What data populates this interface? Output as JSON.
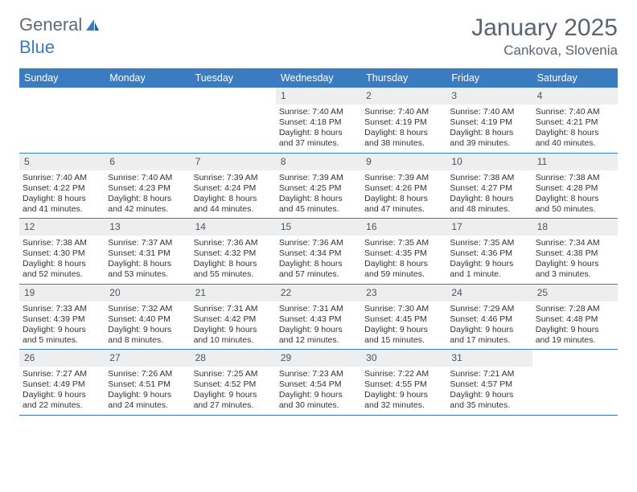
{
  "logo": {
    "text_general": "General",
    "text_blue": "Blue"
  },
  "title": "January 2025",
  "location": "Cankova, Slovenia",
  "colors": {
    "header_bg": "#3b7bbf",
    "header_text": "#ffffff",
    "daynum_bg": "#eceef0",
    "text": "#333333",
    "title_color": "#5a6570",
    "logo_gray": "#606a74",
    "logo_blue": "#3b7bbf",
    "border": "#3b7bbf",
    "page_bg": "#ffffff"
  },
  "day_names": [
    "Sunday",
    "Monday",
    "Tuesday",
    "Wednesday",
    "Thursday",
    "Friday",
    "Saturday"
  ],
  "weeks": [
    [
      {
        "empty": true
      },
      {
        "empty": true
      },
      {
        "empty": true
      },
      {
        "date": "1",
        "sunrise": "Sunrise: 7:40 AM",
        "sunset": "Sunset: 4:18 PM",
        "day1": "Daylight: 8 hours",
        "day2": "and 37 minutes."
      },
      {
        "date": "2",
        "sunrise": "Sunrise: 7:40 AM",
        "sunset": "Sunset: 4:19 PM",
        "day1": "Daylight: 8 hours",
        "day2": "and 38 minutes."
      },
      {
        "date": "3",
        "sunrise": "Sunrise: 7:40 AM",
        "sunset": "Sunset: 4:19 PM",
        "day1": "Daylight: 8 hours",
        "day2": "and 39 minutes."
      },
      {
        "date": "4",
        "sunrise": "Sunrise: 7:40 AM",
        "sunset": "Sunset: 4:21 PM",
        "day1": "Daylight: 8 hours",
        "day2": "and 40 minutes."
      }
    ],
    [
      {
        "date": "5",
        "sunrise": "Sunrise: 7:40 AM",
        "sunset": "Sunset: 4:22 PM",
        "day1": "Daylight: 8 hours",
        "day2": "and 41 minutes."
      },
      {
        "date": "6",
        "sunrise": "Sunrise: 7:40 AM",
        "sunset": "Sunset: 4:23 PM",
        "day1": "Daylight: 8 hours",
        "day2": "and 42 minutes."
      },
      {
        "date": "7",
        "sunrise": "Sunrise: 7:39 AM",
        "sunset": "Sunset: 4:24 PM",
        "day1": "Daylight: 8 hours",
        "day2": "and 44 minutes."
      },
      {
        "date": "8",
        "sunrise": "Sunrise: 7:39 AM",
        "sunset": "Sunset: 4:25 PM",
        "day1": "Daylight: 8 hours",
        "day2": "and 45 minutes."
      },
      {
        "date": "9",
        "sunrise": "Sunrise: 7:39 AM",
        "sunset": "Sunset: 4:26 PM",
        "day1": "Daylight: 8 hours",
        "day2": "and 47 minutes."
      },
      {
        "date": "10",
        "sunrise": "Sunrise: 7:38 AM",
        "sunset": "Sunset: 4:27 PM",
        "day1": "Daylight: 8 hours",
        "day2": "and 48 minutes."
      },
      {
        "date": "11",
        "sunrise": "Sunrise: 7:38 AM",
        "sunset": "Sunset: 4:28 PM",
        "day1": "Daylight: 8 hours",
        "day2": "and 50 minutes."
      }
    ],
    [
      {
        "date": "12",
        "sunrise": "Sunrise: 7:38 AM",
        "sunset": "Sunset: 4:30 PM",
        "day1": "Daylight: 8 hours",
        "day2": "and 52 minutes."
      },
      {
        "date": "13",
        "sunrise": "Sunrise: 7:37 AM",
        "sunset": "Sunset: 4:31 PM",
        "day1": "Daylight: 8 hours",
        "day2": "and 53 minutes."
      },
      {
        "date": "14",
        "sunrise": "Sunrise: 7:36 AM",
        "sunset": "Sunset: 4:32 PM",
        "day1": "Daylight: 8 hours",
        "day2": "and 55 minutes."
      },
      {
        "date": "15",
        "sunrise": "Sunrise: 7:36 AM",
        "sunset": "Sunset: 4:34 PM",
        "day1": "Daylight: 8 hours",
        "day2": "and 57 minutes."
      },
      {
        "date": "16",
        "sunrise": "Sunrise: 7:35 AM",
        "sunset": "Sunset: 4:35 PM",
        "day1": "Daylight: 8 hours",
        "day2": "and 59 minutes."
      },
      {
        "date": "17",
        "sunrise": "Sunrise: 7:35 AM",
        "sunset": "Sunset: 4:36 PM",
        "day1": "Daylight: 9 hours",
        "day2": "and 1 minute."
      },
      {
        "date": "18",
        "sunrise": "Sunrise: 7:34 AM",
        "sunset": "Sunset: 4:38 PM",
        "day1": "Daylight: 9 hours",
        "day2": "and 3 minutes."
      }
    ],
    [
      {
        "date": "19",
        "sunrise": "Sunrise: 7:33 AM",
        "sunset": "Sunset: 4:39 PM",
        "day1": "Daylight: 9 hours",
        "day2": "and 5 minutes."
      },
      {
        "date": "20",
        "sunrise": "Sunrise: 7:32 AM",
        "sunset": "Sunset: 4:40 PM",
        "day1": "Daylight: 9 hours",
        "day2": "and 8 minutes."
      },
      {
        "date": "21",
        "sunrise": "Sunrise: 7:31 AM",
        "sunset": "Sunset: 4:42 PM",
        "day1": "Daylight: 9 hours",
        "day2": "and 10 minutes."
      },
      {
        "date": "22",
        "sunrise": "Sunrise: 7:31 AM",
        "sunset": "Sunset: 4:43 PM",
        "day1": "Daylight: 9 hours",
        "day2": "and 12 minutes."
      },
      {
        "date": "23",
        "sunrise": "Sunrise: 7:30 AM",
        "sunset": "Sunset: 4:45 PM",
        "day1": "Daylight: 9 hours",
        "day2": "and 15 minutes."
      },
      {
        "date": "24",
        "sunrise": "Sunrise: 7:29 AM",
        "sunset": "Sunset: 4:46 PM",
        "day1": "Daylight: 9 hours",
        "day2": "and 17 minutes."
      },
      {
        "date": "25",
        "sunrise": "Sunrise: 7:28 AM",
        "sunset": "Sunset: 4:48 PM",
        "day1": "Daylight: 9 hours",
        "day2": "and 19 minutes."
      }
    ],
    [
      {
        "date": "26",
        "sunrise": "Sunrise: 7:27 AM",
        "sunset": "Sunset: 4:49 PM",
        "day1": "Daylight: 9 hours",
        "day2": "and 22 minutes."
      },
      {
        "date": "27",
        "sunrise": "Sunrise: 7:26 AM",
        "sunset": "Sunset: 4:51 PM",
        "day1": "Daylight: 9 hours",
        "day2": "and 24 minutes."
      },
      {
        "date": "28",
        "sunrise": "Sunrise: 7:25 AM",
        "sunset": "Sunset: 4:52 PM",
        "day1": "Daylight: 9 hours",
        "day2": "and 27 minutes."
      },
      {
        "date": "29",
        "sunrise": "Sunrise: 7:23 AM",
        "sunset": "Sunset: 4:54 PM",
        "day1": "Daylight: 9 hours",
        "day2": "and 30 minutes."
      },
      {
        "date": "30",
        "sunrise": "Sunrise: 7:22 AM",
        "sunset": "Sunset: 4:55 PM",
        "day1": "Daylight: 9 hours",
        "day2": "and 32 minutes."
      },
      {
        "date": "31",
        "sunrise": "Sunrise: 7:21 AM",
        "sunset": "Sunset: 4:57 PM",
        "day1": "Daylight: 9 hours",
        "day2": "and 35 minutes."
      },
      {
        "empty": true
      }
    ]
  ]
}
